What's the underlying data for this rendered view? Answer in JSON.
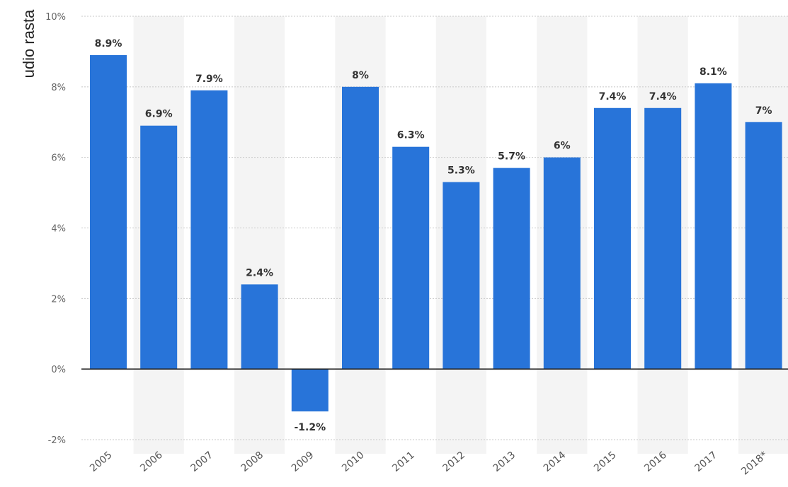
{
  "chart_data": {
    "type": "bar",
    "ylabel": "udio rasta",
    "categories": [
      "2005",
      "2006",
      "2007",
      "2008",
      "2009",
      "2010",
      "2011",
      "2012",
      "2013",
      "2014",
      "2015",
      "2016",
      "2017",
      "2018*"
    ],
    "values": [
      8.9,
      6.9,
      7.9,
      2.4,
      -1.2,
      8,
      6.3,
      5.3,
      5.7,
      6,
      7.4,
      7.4,
      8.1,
      7
    ],
    "value_labels": [
      "8.9%",
      "6.9%",
      "7.9%",
      "2.4%",
      "-1.2%",
      "8%",
      "6.3%",
      "5.3%",
      "5.7%",
      "6%",
      "7.4%",
      "7.4%",
      "8.1%",
      "7%"
    ],
    "yticks": [
      -2,
      0,
      2,
      4,
      6,
      8,
      10
    ],
    "ytick_labels": [
      "-2%",
      "0%",
      "2%",
      "4%",
      "6%",
      "8%",
      "10%"
    ],
    "ylim": [
      -2,
      10
    ],
    "grid": true,
    "bar_color": "#2874d9",
    "axis_color": "#222222",
    "grid_color": "#c8c8c8",
    "band_color": "#f4f4f4"
  }
}
